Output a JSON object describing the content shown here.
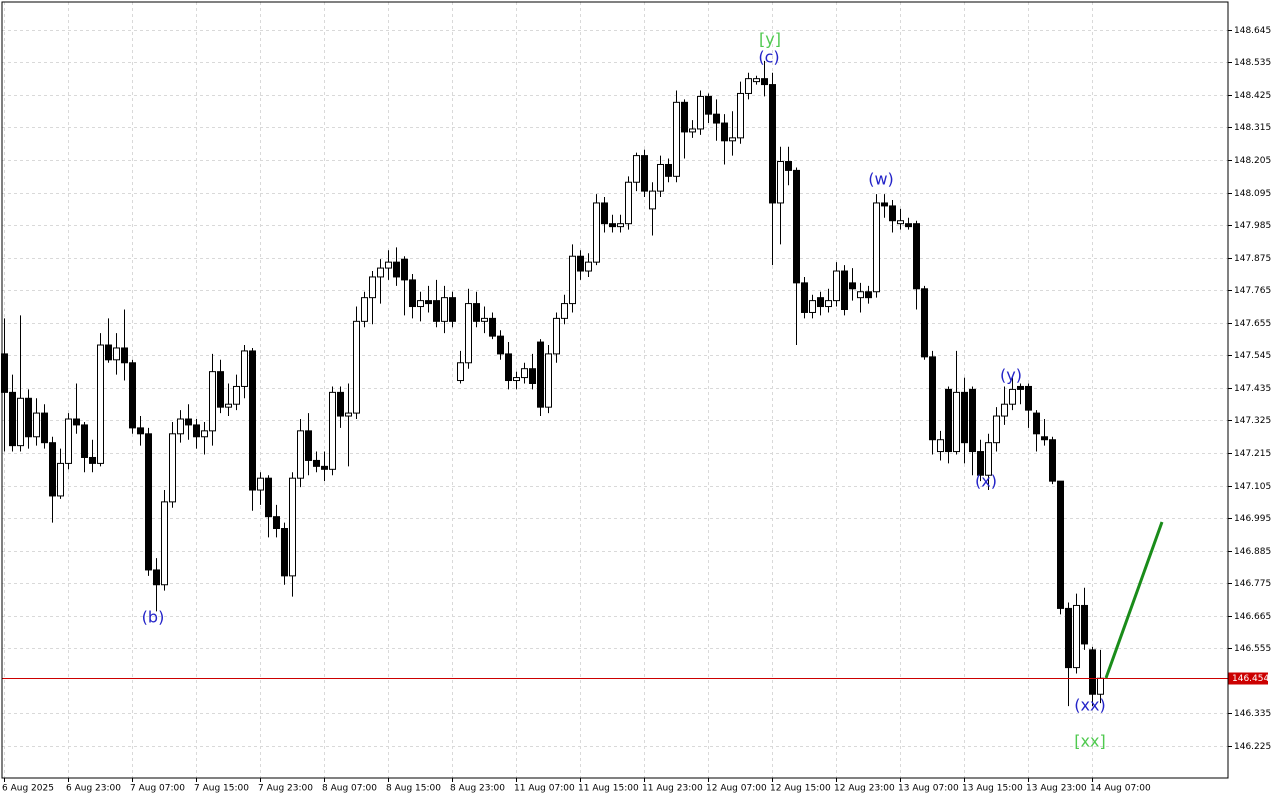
{
  "chart_data": {
    "type": "candlestick",
    "categories": [
      "6 Aug 2025",
      null,
      null,
      null,
      null,
      null,
      null,
      null,
      "6 Aug 23:00",
      null,
      null,
      null,
      null,
      null,
      null,
      null,
      "7 Aug 07:00",
      null,
      null,
      null,
      null,
      null,
      null,
      null,
      "7 Aug 15:00",
      null,
      null,
      null,
      null,
      null,
      null,
      null,
      "7 Aug 23:00",
      null,
      null,
      null,
      null,
      null,
      null,
      null,
      "8 Aug 07:00",
      null,
      null,
      null,
      null,
      null,
      null,
      null,
      "8 Aug 15:00",
      null,
      null,
      null,
      null,
      null,
      null,
      null,
      "8 Aug 23:00",
      null,
      null,
      null,
      null,
      null,
      null,
      null,
      "11 Aug 07:00",
      null,
      null,
      null,
      null,
      null,
      null,
      null,
      "11 Aug 15:00",
      null,
      null,
      null,
      null,
      null,
      null,
      null,
      "11 Aug 23:00",
      null,
      null,
      null,
      null,
      null,
      null,
      null,
      "12 Aug 07:00",
      null,
      null,
      null,
      null,
      null,
      null,
      null,
      "12 Aug 15:00",
      null,
      null,
      null,
      null,
      null,
      null,
      null,
      "12 Aug 23:00",
      null,
      null,
      null,
      null,
      null,
      null,
      null,
      "13 Aug 07:00",
      null,
      null,
      null,
      null,
      null,
      null,
      null,
      "13 Aug 15:00",
      null,
      null,
      null,
      null,
      null,
      null,
      null,
      "13 Aug 23:00",
      null,
      null,
      null,
      null,
      null,
      null,
      null,
      "14 Aug 07:00",
      null
    ],
    "open": [
      147.55,
      147.42,
      147.24,
      147.4,
      147.27,
      147.35,
      147.25,
      147.07,
      147.18,
      147.33,
      147.31,
      147.2,
      147.18,
      147.58,
      147.53,
      147.57,
      147.52,
      147.3,
      147.28,
      146.82,
      146.77,
      147.05,
      147.28,
      147.33,
      147.31,
      147.27,
      147.29,
      147.49,
      147.37,
      147.38,
      147.44,
      147.56,
      147.09,
      147.13,
      147.0,
      146.96,
      146.8,
      147.13,
      147.29,
      147.19,
      147.17,
      147.16,
      147.42,
      147.34,
      147.35,
      147.66,
      147.74,
      147.81,
      147.84,
      147.86,
      147.87,
      147.8,
      147.71,
      147.73,
      147.73,
      147.66,
      147.74,
      147.46,
      147.52,
      147.72,
      147.66,
      147.67,
      147.61,
      147.55,
      147.46,
      147.47,
      147.5,
      147.59,
      147.37,
      147.55,
      147.67,
      147.72,
      147.88,
      147.83,
      147.86,
      148.06,
      147.99,
      147.98,
      147.99,
      148.13,
      148.22,
      148.04,
      148.1,
      148.19,
      148.15,
      148.4,
      148.3,
      148.31,
      148.42,
      148.36,
      148.33,
      148.27,
      148.28,
      148.43,
      148.47,
      148.48,
      148.46,
      148.06,
      148.2,
      148.17,
      147.79,
      147.69,
      147.74,
      147.71,
      147.73,
      147.83,
      147.79,
      147.74,
      147.76,
      147.76,
      148.06,
      148.05,
      147.99,
      147.99,
      147.99,
      147.77,
      147.54,
      147.22,
      147.43,
      147.22,
      147.42,
      147.43,
      147.22,
      147.14,
      147.25,
      147.34,
      147.38,
      147.44,
      147.44,
      147.35,
      147.27,
      147.26,
      147.12,
      146.69,
      146.49,
      146.7,
      146.55,
      146.4
    ],
    "high": [
      147.67,
      147.48,
      147.68,
      147.43,
      147.4,
      147.38,
      147.27,
      147.23,
      147.35,
      147.45,
      147.32,
      147.26,
      147.62,
      147.67,
      147.62,
      147.7,
      147.53,
      147.34,
      147.3,
      146.86,
      147.09,
      147.32,
      147.36,
      147.38,
      147.33,
      147.32,
      147.55,
      147.53,
      147.45,
      147.48,
      147.58,
      147.57,
      147.15,
      147.14,
      147.04,
      146.98,
      147.15,
      147.33,
      147.35,
      147.22,
      147.22,
      147.44,
      147.44,
      147.45,
      147.71,
      147.76,
      147.83,
      147.87,
      147.9,
      147.91,
      147.88,
      147.82,
      147.76,
      147.78,
      147.8,
      147.78,
      147.76,
      147.56,
      147.77,
      147.76,
      147.71,
      147.69,
      147.63,
      147.59,
      147.49,
      147.52,
      147.55,
      147.6,
      147.58,
      147.69,
      147.75,
      147.92,
      147.9,
      147.89,
      148.09,
      148.08,
      148.02,
      148.02,
      148.15,
      148.23,
      148.24,
      148.13,
      148.22,
      148.21,
      148.44,
      148.41,
      148.34,
      148.44,
      148.43,
      148.41,
      148.36,
      148.37,
      148.47,
      148.5,
      148.49,
      148.54,
      148.5,
      148.25,
      148.25,
      148.18,
      147.81,
      147.75,
      147.76,
      147.77,
      147.86,
      147.85,
      147.84,
      147.79,
      147.78,
      148.09,
      148.09,
      148.07,
      148.04,
      148.01,
      148.0,
      147.78,
      147.56,
      147.29,
      147.44,
      147.56,
      147.47,
      147.44,
      147.26,
      147.28,
      147.37,
      147.44,
      147.47,
      147.45,
      147.45,
      147.36,
      147.33,
      147.27,
      147.12,
      146.71,
      146.74,
      146.76,
      146.56,
      146.55
    ],
    "low": [
      147.22,
      147.22,
      147.22,
      147.23,
      147.24,
      147.23,
      146.98,
      147.06,
      147.16,
      147.28,
      147.15,
      147.15,
      147.17,
      147.52,
      147.48,
      147.46,
      147.28,
      147.24,
      146.8,
      146.68,
      146.75,
      147.03,
      147.25,
      147.26,
      147.23,
      147.21,
      147.24,
      147.35,
      147.34,
      147.36,
      147.4,
      147.02,
      147.04,
      146.93,
      146.93,
      146.77,
      146.73,
      147.1,
      147.14,
      147.15,
      147.12,
      147.14,
      147.3,
      147.17,
      147.33,
      147.64,
      147.65,
      147.72,
      147.8,
      147.78,
      147.68,
      147.67,
      147.66,
      147.69,
      147.64,
      147.62,
      147.64,
      147.45,
      147.5,
      147.64,
      147.62,
      147.6,
      147.53,
      147.43,
      147.43,
      147.45,
      147.43,
      147.34,
      147.35,
      147.52,
      147.65,
      147.69,
      147.8,
      147.81,
      147.85,
      147.96,
      147.96,
      147.96,
      147.97,
      148.1,
      148.08,
      147.95,
      148.08,
      148.13,
      148.13,
      148.21,
      148.28,
      148.29,
      148.33,
      148.27,
      148.19,
      148.22,
      148.26,
      148.41,
      148.46,
      148.42,
      147.85,
      147.92,
      148.12,
      147.58,
      147.67,
      147.67,
      147.68,
      147.69,
      147.71,
      147.68,
      147.73,
      147.69,
      147.72,
      147.74,
      148.01,
      147.96,
      147.97,
      147.97,
      147.7,
      147.53,
      147.21,
      147.19,
      147.18,
      147.21,
      147.18,
      147.14,
      147.12,
      147.09,
      147.22,
      147.31,
      147.36,
      147.38,
      147.3,
      147.22,
      147.24,
      147.11,
      146.67,
      146.36,
      146.47,
      146.55,
      146.36,
      146.37
    ],
    "close": [
      147.42,
      147.24,
      147.4,
      147.27,
      147.35,
      147.25,
      147.07,
      147.18,
      147.33,
      147.31,
      147.2,
      147.18,
      147.58,
      147.53,
      147.57,
      147.52,
      147.3,
      147.28,
      146.82,
      146.77,
      147.05,
      147.28,
      147.33,
      147.31,
      147.27,
      147.29,
      147.49,
      147.37,
      147.38,
      147.44,
      147.56,
      147.09,
      147.13,
      147.0,
      146.96,
      146.8,
      147.13,
      147.29,
      147.19,
      147.17,
      147.16,
      147.42,
      147.34,
      147.35,
      147.66,
      147.74,
      147.81,
      147.84,
      147.86,
      147.81,
      147.8,
      147.71,
      147.73,
      147.72,
      147.66,
      147.74,
      147.66,
      147.52,
      147.72,
      147.66,
      147.67,
      147.61,
      147.55,
      147.46,
      147.47,
      147.5,
      147.45,
      147.37,
      147.55,
      147.67,
      147.72,
      147.88,
      147.83,
      147.86,
      148.06,
      147.99,
      147.98,
      147.99,
      148.13,
      148.22,
      148.1,
      148.1,
      148.19,
      148.15,
      148.4,
      148.3,
      148.31,
      148.42,
      148.36,
      148.33,
      148.27,
      148.28,
      148.43,
      148.48,
      148.48,
      148.46,
      148.06,
      148.2,
      148.17,
      147.79,
      147.69,
      147.73,
      147.71,
      147.73,
      147.83,
      147.7,
      147.77,
      147.76,
      147.74,
      148.06,
      148.05,
      148.0,
      148.0,
      147.98,
      147.77,
      147.54,
      147.26,
      147.26,
      147.22,
      147.42,
      147.25,
      147.22,
      147.14,
      147.25,
      147.34,
      147.38,
      147.43,
      147.43,
      147.36,
      147.28,
      147.26,
      147.12,
      146.69,
      146.49,
      146.7,
      146.57,
      146.4,
      146.454
    ],
    "bull_color": "#ffffff",
    "bear_color": "#000000",
    "ylim": [
      146.117,
      148.739
    ],
    "yticks": [
      148.645,
      148.535,
      148.425,
      148.315,
      148.205,
      148.095,
      147.985,
      147.875,
      147.765,
      147.655,
      147.545,
      147.435,
      147.325,
      147.215,
      147.105,
      146.995,
      146.885,
      146.775,
      146.665,
      146.555,
      146.335,
      146.225
    ],
    "grid": true,
    "current_price": 146.454,
    "current_price_color": "#cc0000",
    "annotations": [
      {
        "text": "[y]",
        "color": "#4fc94f"
      },
      {
        "text": "(c)",
        "color": "#2323c8"
      },
      {
        "text": "(b)",
        "color": "#2323c8"
      },
      {
        "text": "(w)",
        "color": "#2323c8"
      },
      {
        "text": "(x)",
        "color": "#2323c8"
      },
      {
        "text": "(y)",
        "color": "#2323c8"
      },
      {
        "text": "(xx)",
        "color": "#2323c8"
      },
      {
        "text": "[xx]",
        "color": "#4fc94f"
      }
    ]
  }
}
